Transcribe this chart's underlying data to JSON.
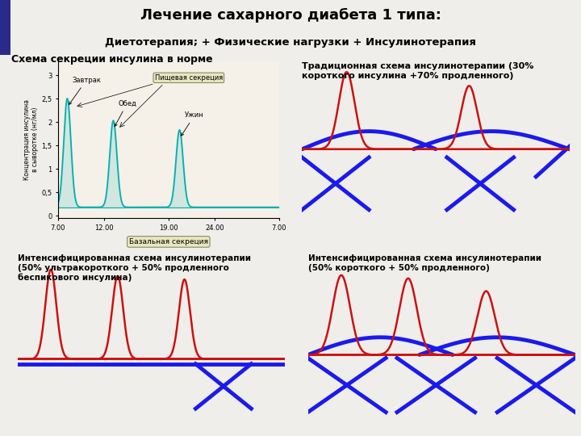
{
  "title": "Лечение сахарного диабета 1 типа:",
  "subtitle": "Диетотерапия; + Физические нагрузки + Инсулинотерапия",
  "schema1_title": "Схема секреции инсулина в норме",
  "schema2_title": "Традиционная схема инсулинотерапии (30%\nкороткого инсулина +70% продленного)",
  "schema3_title": "Интенсифицированная схема инсулинотерапии\n(50% ультракороткого + 50% продленного\nбеспикового инсулина)",
  "schema4_title": "Интенсифицированная схема инсулинотерапии\n(50% короткого + 50% продленного)",
  "bg_color": "#f0eeea",
  "teal_color": "#00b0b0",
  "blue_color": "#1a1aee",
  "red_color": "#cc1111",
  "lw_thick": 3.5,
  "lw_thin": 1.8
}
